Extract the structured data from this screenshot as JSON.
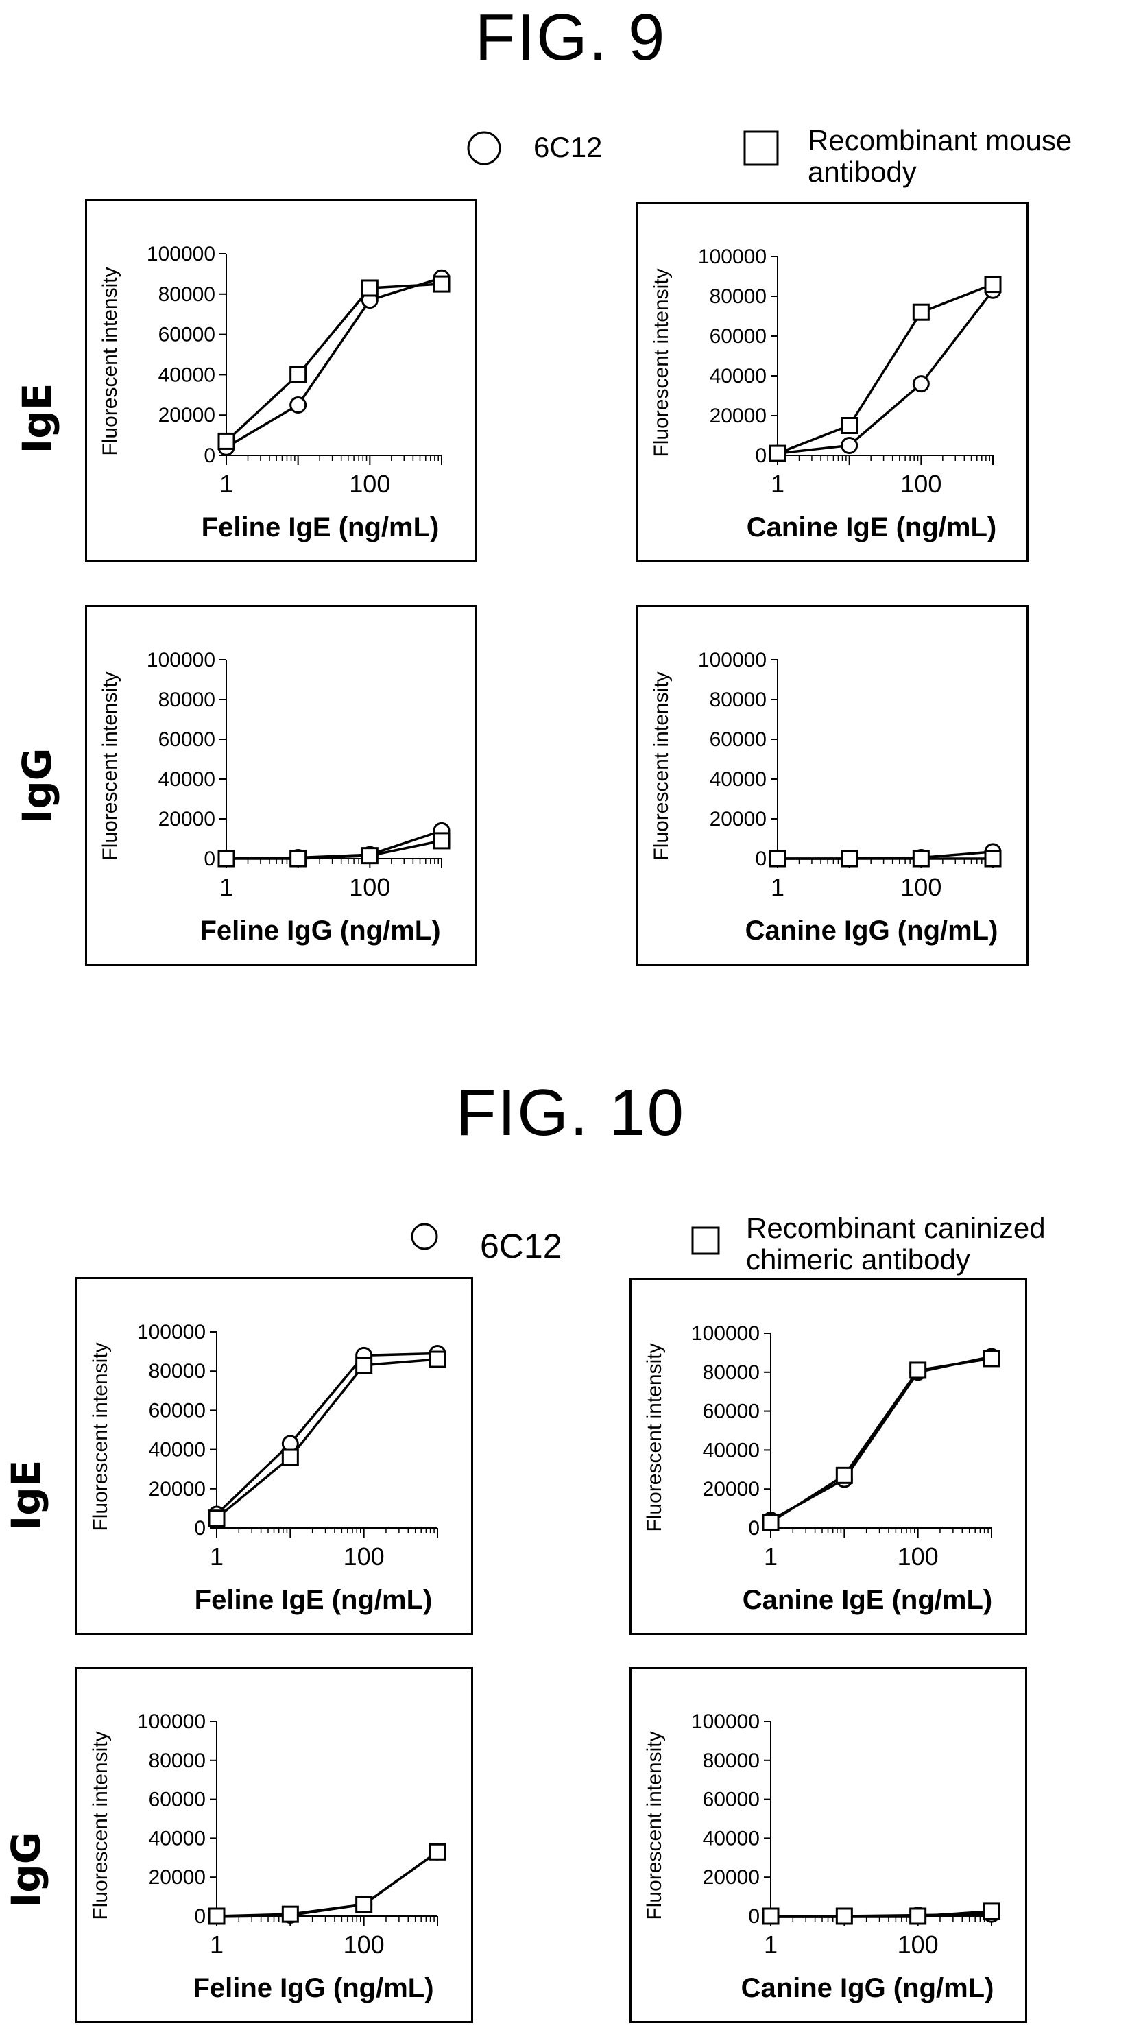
{
  "figures": [
    {
      "title": "FIG. 9",
      "legend": [
        {
          "marker": "circle",
          "label": "6C12"
        },
        {
          "marker": "square",
          "label_lines": [
            "Recombinant mouse",
            "antibody"
          ]
        }
      ],
      "row_labels": [
        "IgE",
        "IgG"
      ]
    },
    {
      "title": "FIG. 10",
      "legend": [
        {
          "marker": "circle",
          "label": "6C12"
        },
        {
          "marker": "square",
          "label_lines": [
            "Recombinant caninized",
            "chimeric antibody"
          ]
        }
      ],
      "row_labels": [
        "IgE",
        "IgG"
      ]
    }
  ],
  "chart_data": [
    {
      "type": "line",
      "xscale": "log",
      "xlabel": "Feline IgE (ng/mL)",
      "ylabel": "Fluorescent intensity",
      "xlim": [
        1,
        1000
      ],
      "ylim": [
        0,
        100000
      ],
      "xticks": [
        "1",
        "100"
      ],
      "yticks": [
        "0",
        "20000",
        "40000",
        "60000",
        "80000",
        "100000"
      ],
      "x": [
        1,
        10,
        100,
        1000
      ],
      "series": [
        {
          "marker": "circle",
          "values": [
            4000,
            25000,
            77000,
            88000
          ]
        },
        {
          "marker": "square",
          "values": [
            7000,
            40000,
            83000,
            85000
          ]
        }
      ]
    },
    {
      "type": "line",
      "xscale": "log",
      "xlabel": "Canine IgE (ng/mL)",
      "ylabel": "Fluorescent intensity",
      "xlim": [
        1,
        1000
      ],
      "ylim": [
        0,
        100000
      ],
      "xticks": [
        "1",
        "100"
      ],
      "yticks": [
        "0",
        "20000",
        "40000",
        "60000",
        "80000",
        "100000"
      ],
      "x": [
        1,
        10,
        100,
        1000
      ],
      "series": [
        {
          "marker": "circle",
          "values": [
            1000,
            5000,
            36000,
            83000
          ]
        },
        {
          "marker": "square",
          "values": [
            1000,
            15000,
            72000,
            86000
          ]
        }
      ]
    },
    {
      "type": "line",
      "xscale": "log",
      "xlabel": "Feline IgG (ng/mL)",
      "ylabel": "Fluorescent intensity",
      "xlim": [
        1,
        1000
      ],
      "ylim": [
        0,
        100000
      ],
      "xticks": [
        "1",
        "100"
      ],
      "yticks": [
        "0",
        "20000",
        "40000",
        "60000",
        "80000",
        "100000"
      ],
      "x": [
        1,
        10,
        100,
        1000
      ],
      "series": [
        {
          "marker": "circle",
          "values": [
            0,
            500,
            2000,
            14000
          ]
        },
        {
          "marker": "square",
          "values": [
            0,
            0,
            1500,
            9000
          ]
        }
      ]
    },
    {
      "type": "line",
      "xscale": "log",
      "xlabel": "Canine IgG (ng/mL)",
      "ylabel": "Fluorescent intensity",
      "xlim": [
        1,
        1000
      ],
      "ylim": [
        0,
        100000
      ],
      "xticks": [
        "1",
        "100"
      ],
      "yticks": [
        "0",
        "20000",
        "40000",
        "60000",
        "80000",
        "100000"
      ],
      "x": [
        1,
        10,
        100,
        1000
      ],
      "series": [
        {
          "marker": "circle",
          "values": [
            0,
            0,
            500,
            3500
          ]
        },
        {
          "marker": "square",
          "values": [
            0,
            0,
            0,
            0
          ]
        }
      ]
    },
    {
      "type": "line",
      "xscale": "log",
      "xlabel": "Feline IgE (ng/mL)",
      "ylabel": "Fluorescent intensity",
      "xlim": [
        1,
        1000
      ],
      "ylim": [
        0,
        100000
      ],
      "xticks": [
        "1",
        "100"
      ],
      "yticks": [
        "0",
        "20000",
        "40000",
        "60000",
        "80000",
        "100000"
      ],
      "x": [
        1,
        10,
        100,
        1000
      ],
      "series": [
        {
          "marker": "circle",
          "values": [
            7000,
            43000,
            88000,
            89000
          ]
        },
        {
          "marker": "square",
          "values": [
            5000,
            36000,
            83000,
            86000
          ]
        }
      ]
    },
    {
      "type": "line",
      "xscale": "log",
      "xlabel": "Canine IgE (ng/mL)",
      "ylabel": "Fluorescent intensity",
      "xlim": [
        1,
        1000
      ],
      "ylim": [
        0,
        100000
      ],
      "xticks": [
        "1",
        "100"
      ],
      "yticks": [
        "0",
        "20000",
        "40000",
        "60000",
        "80000",
        "100000"
      ],
      "x": [
        1,
        10,
        100,
        1000
      ],
      "series": [
        {
          "marker": "circle",
          "values": [
            4000,
            25000,
            80000,
            88000
          ]
        },
        {
          "marker": "square",
          "values": [
            3000,
            27000,
            81000,
            87000
          ]
        }
      ]
    },
    {
      "type": "line",
      "xscale": "log",
      "xlabel": "Feline IgG (ng/mL)",
      "ylabel": "Fluorescent intensity",
      "xlim": [
        1,
        1000
      ],
      "ylim": [
        0,
        100000
      ],
      "xticks": [
        "1",
        "100"
      ],
      "yticks": [
        "0",
        "20000",
        "40000",
        "60000",
        "80000",
        "100000"
      ],
      "x": [
        1,
        10,
        100,
        1000
      ],
      "series": [
        {
          "marker": "circle",
          "values": [
            0,
            500,
            6000,
            33000
          ]
        },
        {
          "marker": "square",
          "values": [
            0,
            1000,
            6000,
            33000
          ]
        }
      ]
    },
    {
      "type": "line",
      "xscale": "log",
      "xlabel": "Canine IgG (ng/mL)",
      "ylabel": "Fluorescent intensity",
      "xlim": [
        1,
        1000
      ],
      "ylim": [
        0,
        100000
      ],
      "xticks": [
        "1",
        "100"
      ],
      "yticks": [
        "0",
        "20000",
        "40000",
        "60000",
        "80000",
        "100000"
      ],
      "x": [
        1,
        10,
        100,
        1000
      ],
      "series": [
        {
          "marker": "circle",
          "values": [
            0,
            0,
            500,
            1000
          ]
        },
        {
          "marker": "square",
          "values": [
            0,
            0,
            0,
            2500
          ]
        }
      ]
    }
  ]
}
